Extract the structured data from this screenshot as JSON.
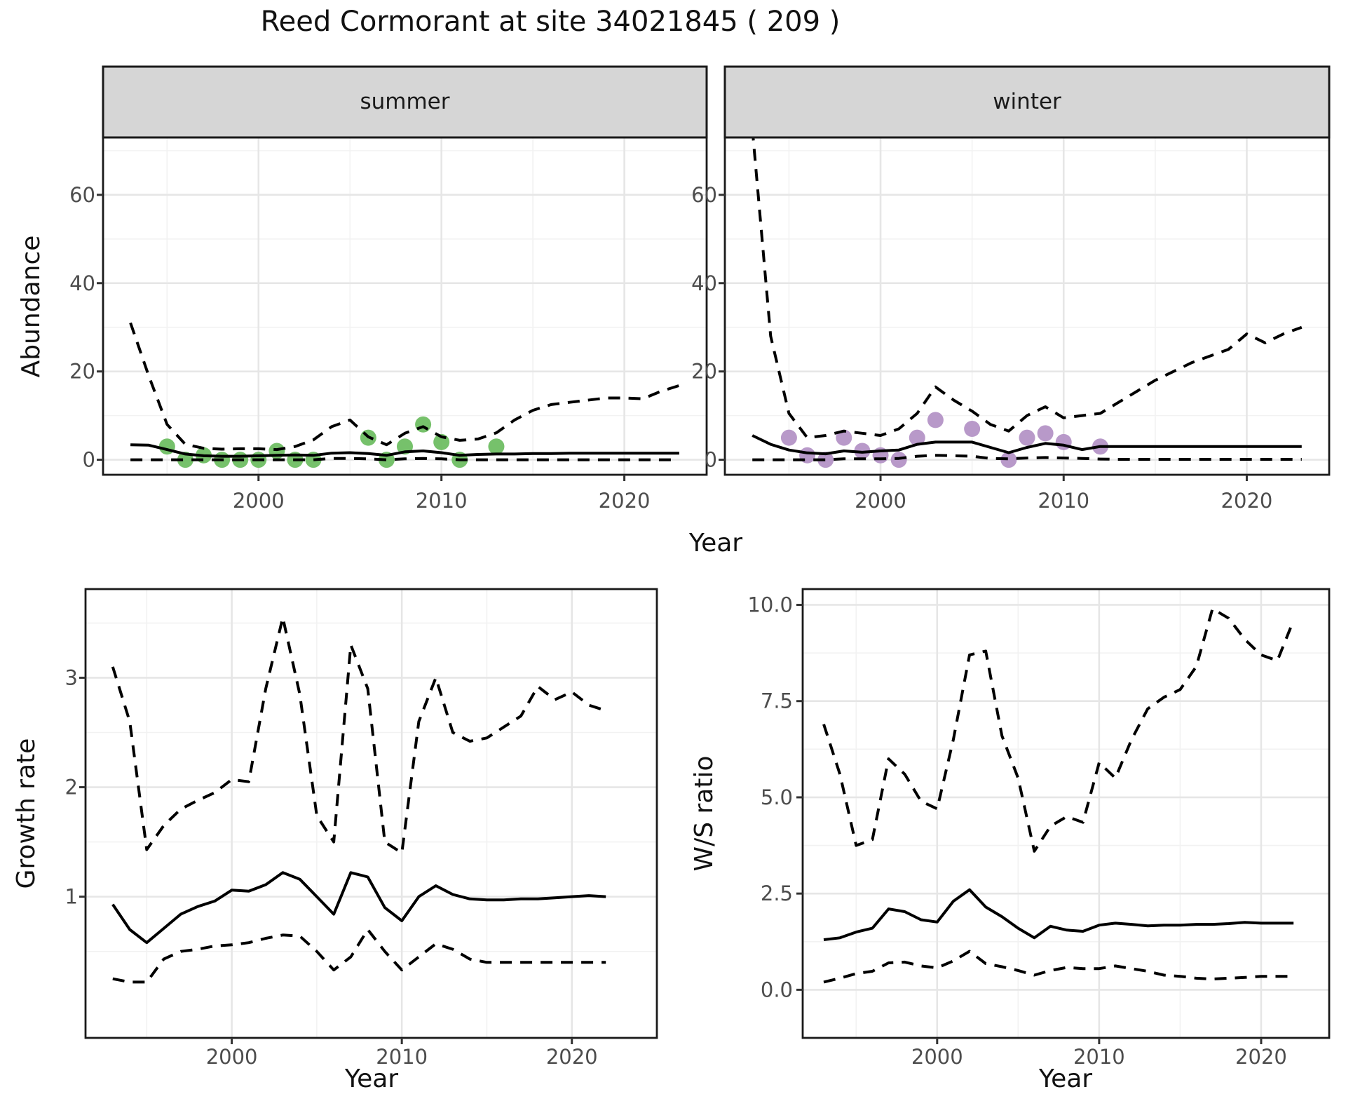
{
  "title": "Reed Cormorant at site 34021845 ( 209 )",
  "facets": [
    "summer",
    "winter"
  ],
  "axis_titles": {
    "abundance": "Abundance",
    "year": "Year",
    "growth_rate": "Growth rate",
    "ws_ratio": "W/S ratio"
  },
  "colors": {
    "summer_points": "#6FBE63",
    "winter_points": "#B494C6",
    "line": "#000000",
    "panel_border": "#1a1a1a",
    "grid_major": "#e6e6e6",
    "grid_minor": "#f2f2f2",
    "strip_background": "#d6d6d6",
    "strip_text": "#1a1a1a",
    "axis_text": "#4d4d4d",
    "tick_mark": "#333333"
  },
  "chart_data": [
    {
      "id": "abundance_summer",
      "type": "line",
      "title": "summer",
      "xlabel": "Year",
      "ylabel": "Abundance",
      "xlim": [
        1991.5,
        2024.5
      ],
      "ylim": [
        -3.4,
        73.0
      ],
      "xticks": {
        "values": [
          2000,
          2010,
          2020
        ],
        "labels": [
          "2000",
          "2010",
          "2020"
        ]
      },
      "yticks": {
        "values": [
          0,
          20,
          40,
          60
        ],
        "labels": [
          "0",
          "20",
          "40",
          "60"
        ]
      },
      "xminor": [
        1995,
        2005,
        2015
      ],
      "yminor": [
        10,
        30,
        50,
        70
      ],
      "x_years": [
        1993,
        1994,
        1995,
        1996,
        1997,
        1998,
        1999,
        2000,
        2001,
        2002,
        2003,
        2004,
        2005,
        2006,
        2007,
        2008,
        2009,
        2010,
        2011,
        2012,
        2013,
        2014,
        2015,
        2016,
        2017,
        2018,
        2019,
        2020,
        2021,
        2022,
        2023
      ],
      "series": [
        {
          "name": "median",
          "linetype": "solid",
          "values": [
            3.4,
            3.3,
            2.3,
            1.3,
            0.9,
            0.8,
            0.8,
            0.9,
            1.0,
            1.1,
            1.0,
            1.5,
            1.6,
            1.4,
            1.0,
            1.8,
            2.0,
            1.6,
            1.0,
            1.2,
            1.3,
            1.3,
            1.4,
            1.4,
            1.5,
            1.5,
            1.5,
            1.5,
            1.5,
            1.5,
            1.5
          ]
        },
        {
          "name": "upper_ci",
          "linetype": "dashed",
          "values": [
            31,
            19,
            8,
            3.5,
            2.6,
            2.4,
            2.5,
            2.5,
            2.3,
            3.0,
            4.5,
            7.5,
            9.0,
            5.2,
            3.4,
            6.0,
            7.5,
            5.2,
            4.4,
            4.7,
            6.1,
            9.0,
            11.2,
            12.5,
            13.0,
            13.5,
            14.0,
            14.0,
            13.8,
            15.5,
            16.8
          ]
        },
        {
          "name": "lower_ci",
          "linetype": "dashed",
          "values": [
            0,
            0,
            0,
            0,
            0,
            0,
            0,
            0,
            0,
            0,
            0,
            0.3,
            0.3,
            0.2,
            0,
            0.2,
            0.3,
            0.2,
            0,
            0,
            0,
            0,
            0,
            0,
            0,
            0,
            0,
            0,
            0,
            0,
            0
          ]
        }
      ],
      "points": {
        "name": "observed_counts",
        "color": "#6FBE63",
        "data": [
          [
            1995,
            3
          ],
          [
            1996,
            0
          ],
          [
            1997,
            1
          ],
          [
            1998,
            0
          ],
          [
            1999,
            0
          ],
          [
            2000,
            0
          ],
          [
            2001,
            2
          ],
          [
            2002,
            0
          ],
          [
            2003,
            0
          ],
          [
            2006,
            5
          ],
          [
            2007,
            0
          ],
          [
            2008,
            3
          ],
          [
            2009,
            8
          ],
          [
            2010,
            4
          ],
          [
            2011,
            0
          ],
          [
            2013,
            3
          ]
        ]
      }
    },
    {
      "id": "abundance_winter",
      "type": "line",
      "title": "winter",
      "xlabel": "Year",
      "ylabel": "Abundance",
      "xlim": [
        1991.5,
        2024.5
      ],
      "ylim": [
        -3.4,
        73.0
      ],
      "xticks": {
        "values": [
          2000,
          2010,
          2020
        ],
        "labels": [
          "2000",
          "2010",
          "2020"
        ]
      },
      "yticks": {
        "values": [
          0,
          20,
          40,
          60
        ],
        "labels": [
          "0",
          "20",
          "40",
          "60"
        ]
      },
      "xminor": [
        1995,
        2005,
        2015
      ],
      "yminor": [
        10,
        30,
        50,
        70
      ],
      "x_years": [
        1993,
        1994,
        1995,
        1996,
        1997,
        1998,
        1999,
        2000,
        2001,
        2002,
        2003,
        2004,
        2005,
        2006,
        2007,
        2008,
        2009,
        2010,
        2011,
        2012,
        2013,
        2014,
        2015,
        2016,
        2017,
        2018,
        2019,
        2020,
        2021,
        2022,
        2023
      ],
      "series": [
        {
          "name": "median",
          "linetype": "solid",
          "values": [
            5.5,
            3.5,
            2.2,
            1.55,
            1.35,
            2.0,
            1.7,
            2.0,
            2.2,
            3.5,
            4.0,
            4.0,
            4.0,
            2.8,
            1.6,
            2.8,
            3.7,
            3.3,
            2.3,
            3.0,
            3.0,
            3.0,
            3.0,
            3.0,
            3.0,
            3.0,
            3.0,
            3.0,
            3.0,
            3.0,
            3.0
          ]
        },
        {
          "name": "upper_ci",
          "linetype": "dashed",
          "values": [
            75,
            28,
            10.5,
            5.0,
            5.5,
            6.5,
            6.0,
            5.5,
            7.0,
            10.5,
            16.5,
            13.5,
            11.0,
            8.0,
            6.5,
            10.0,
            12.0,
            9.5,
            10.0,
            10.5,
            13.0,
            15.5,
            18.0,
            20.0,
            22.0,
            23.5,
            25.0,
            28.5,
            26.5,
            28.5,
            30.0
          ]
        },
        {
          "name": "lower_ci",
          "linetype": "dashed",
          "values": [
            0,
            0,
            0,
            0,
            0,
            0.2,
            0.2,
            0.2,
            0.3,
            0.8,
            1.0,
            0.9,
            0.8,
            0.3,
            0.2,
            0.4,
            0.5,
            0.4,
            0.3,
            0.15,
            0.1,
            0.1,
            0.1,
            0.1,
            0.1,
            0.1,
            0.1,
            0.1,
            0.1,
            0.1,
            0.1
          ]
        }
      ],
      "points": {
        "name": "observed_counts",
        "color": "#B494C6",
        "data": [
          [
            1995,
            5
          ],
          [
            1996,
            1
          ],
          [
            1997,
            0
          ],
          [
            1998,
            5
          ],
          [
            1999,
            2
          ],
          [
            2000,
            1
          ],
          [
            2001,
            0
          ],
          [
            2002,
            5
          ],
          [
            2003,
            9
          ],
          [
            2005,
            7
          ],
          [
            2007,
            0
          ],
          [
            2008,
            5
          ],
          [
            2009,
            6
          ],
          [
            2010,
            4
          ],
          [
            2012,
            3
          ]
        ]
      }
    },
    {
      "id": "growth_rate",
      "type": "line",
      "title": "",
      "xlabel": "Year",
      "ylabel": "Growth rate",
      "xlim": [
        1991.4,
        2025.0
      ],
      "ylim": [
        -0.29,
        3.81
      ],
      "xticks": {
        "values": [
          2000,
          2010,
          2020
        ],
        "labels": [
          "2000",
          "2010",
          "2020"
        ]
      },
      "yticks": {
        "values": [
          1,
          2,
          3
        ],
        "labels": [
          "1",
          "2",
          "3"
        ]
      },
      "xminor": [
        1995,
        2005,
        2015
      ],
      "yminor": [
        0.5,
        1.5,
        2.5,
        3.5
      ],
      "x_years": [
        1993,
        1994,
        1995,
        1996,
        1997,
        1998,
        1999,
        2000,
        2001,
        2002,
        2003,
        2004,
        2005,
        2006,
        2007,
        2008,
        2009,
        2010,
        2011,
        2012,
        2013,
        2014,
        2015,
        2016,
        2017,
        2018,
        2019,
        2020,
        2021,
        2022
      ],
      "series": [
        {
          "name": "median",
          "linetype": "solid",
          "values": [
            0.93,
            0.7,
            0.58,
            0.71,
            0.84,
            0.91,
            0.96,
            1.06,
            1.05,
            1.11,
            1.22,
            1.16,
            1.0,
            0.84,
            1.22,
            1.18,
            0.9,
            0.78,
            1.0,
            1.1,
            1.02,
            0.98,
            0.97,
            0.97,
            0.98,
            0.98,
            0.99,
            1.0,
            1.01,
            1.0
          ]
        },
        {
          "name": "upper_ci",
          "linetype": "dashed",
          "values": [
            3.1,
            2.6,
            1.43,
            1.65,
            1.8,
            1.88,
            1.95,
            2.07,
            2.05,
            2.9,
            3.55,
            2.85,
            1.74,
            1.5,
            3.3,
            2.9,
            1.5,
            1.4,
            2.6,
            3.0,
            2.5,
            2.42,
            2.45,
            2.55,
            2.65,
            2.92,
            2.8,
            2.87,
            2.75,
            2.7
          ]
        },
        {
          "name": "lower_ci",
          "linetype": "dashed",
          "values": [
            0.25,
            0.22,
            0.22,
            0.43,
            0.5,
            0.52,
            0.55,
            0.56,
            0.58,
            0.62,
            0.65,
            0.64,
            0.5,
            0.33,
            0.45,
            0.7,
            0.5,
            0.33,
            0.45,
            0.57,
            0.52,
            0.43,
            0.4,
            0.4,
            0.4,
            0.4,
            0.4,
            0.4,
            0.4,
            0.4
          ]
        }
      ]
    },
    {
      "id": "ws_ratio",
      "type": "line",
      "title": "",
      "xlabel": "Year",
      "ylabel": "W/S ratio",
      "xlim": [
        1991.7,
        2024.2
      ],
      "ylim": [
        -1.25,
        10.41
      ],
      "xticks": {
        "values": [
          2000,
          2010,
          2020
        ],
        "labels": [
          "2000",
          "2010",
          "2020"
        ]
      },
      "yticks": {
        "values": [
          0,
          2.5,
          5,
          7.5,
          10
        ],
        "labels": [
          "0.0",
          "2.5",
          "5.0",
          "7.5",
          "10.0"
        ]
      },
      "xminor": [
        1995,
        2005,
        2015
      ],
      "yminor": [
        1.25,
        3.75,
        6.25,
        8.75
      ],
      "x_years": [
        1993,
        1994,
        1995,
        1996,
        1997,
        1998,
        1999,
        2000,
        2001,
        2002,
        2003,
        2004,
        2005,
        2006,
        2007,
        2008,
        2009,
        2010,
        2011,
        2012,
        2013,
        2014,
        2015,
        2016,
        2017,
        2018,
        2019,
        2020,
        2021,
        2022
      ],
      "series": [
        {
          "name": "median",
          "linetype": "solid",
          "values": [
            1.3,
            1.35,
            1.5,
            1.6,
            2.1,
            2.03,
            1.82,
            1.76,
            2.3,
            2.6,
            2.15,
            1.9,
            1.6,
            1.35,
            1.65,
            1.55,
            1.52,
            1.68,
            1.73,
            1.7,
            1.66,
            1.68,
            1.68,
            1.7,
            1.7,
            1.72,
            1.75,
            1.73,
            1.73,
            1.73
          ]
        },
        {
          "name": "upper_ci",
          "linetype": "dashed",
          "values": [
            6.9,
            5.6,
            3.75,
            3.9,
            6.0,
            5.6,
            4.9,
            4.7,
            6.5,
            8.7,
            8.8,
            6.6,
            5.5,
            3.6,
            4.25,
            4.5,
            4.35,
            5.9,
            5.5,
            6.5,
            7.3,
            7.6,
            7.8,
            8.4,
            9.9,
            9.65,
            9.1,
            8.7,
            8.55,
            9.6
          ]
        },
        {
          "name": "lower_ci",
          "linetype": "dashed",
          "values": [
            0.2,
            0.3,
            0.42,
            0.48,
            0.7,
            0.72,
            0.62,
            0.57,
            0.75,
            1.0,
            0.68,
            0.6,
            0.5,
            0.38,
            0.5,
            0.58,
            0.55,
            0.55,
            0.62,
            0.55,
            0.48,
            0.38,
            0.35,
            0.3,
            0.28,
            0.3,
            0.32,
            0.35,
            0.35,
            0.35
          ]
        }
      ]
    }
  ]
}
